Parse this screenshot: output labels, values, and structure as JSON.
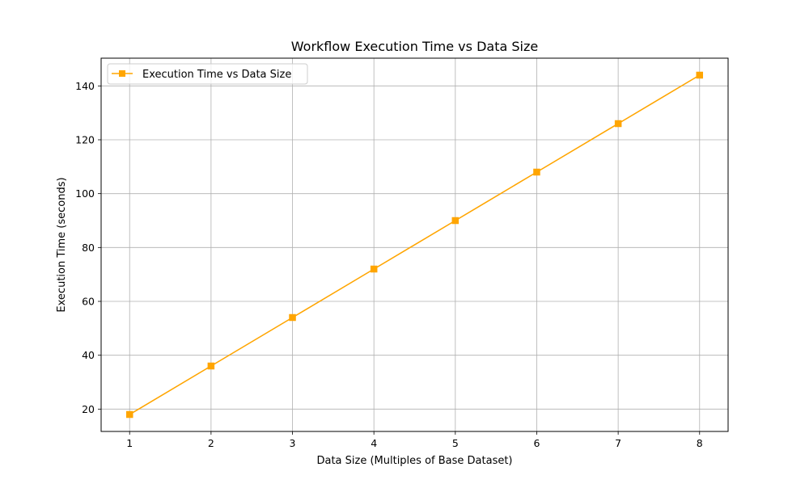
{
  "chart_data": {
    "type": "line",
    "title": "Workflow Execution Time vs Data Size",
    "xlabel": "Data Size (Multiples of Base Dataset)",
    "ylabel": "Execution Time (seconds)",
    "x": [
      1,
      2,
      3,
      4,
      5,
      6,
      7,
      8
    ],
    "series": [
      {
        "name": "Execution Time vs Data Size",
        "values": [
          18,
          36,
          54,
          72,
          90,
          108,
          126,
          144
        ],
        "color": "#ffa500",
        "marker": "square"
      }
    ],
    "xlim": [
      0.65,
      8.35
    ],
    "ylim": [
      11.7,
      150.3
    ],
    "xticks": [
      1,
      2,
      3,
      4,
      5,
      6,
      7,
      8
    ],
    "yticks": [
      20,
      40,
      60,
      80,
      100,
      120,
      140
    ],
    "grid": true,
    "legend_position": "top-left"
  }
}
